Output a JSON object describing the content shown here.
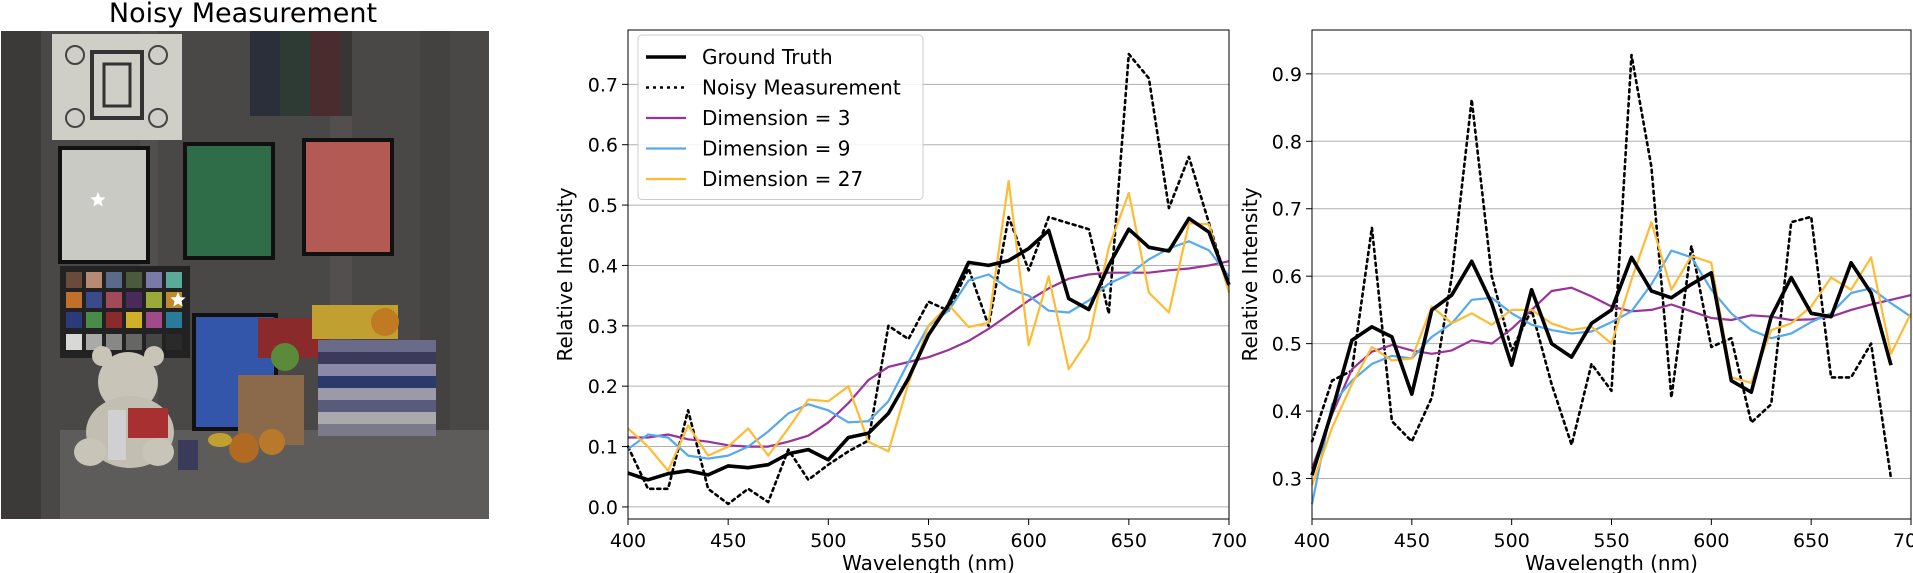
{
  "image_panel": {
    "title": "Noisy Measurement",
    "scene": "hyperspectral scene with color chart, test target, teddy bear and books",
    "markers": [
      "star-marker",
      "star-marker"
    ]
  },
  "colors": {
    "ground_truth": "#000000",
    "noisy": "#000000",
    "dim3": "#993399",
    "dim9": "#55aaee",
    "dim27": "#ffbb33",
    "grid": "#b0b0b0"
  },
  "chart_data": [
    {
      "type": "line",
      "title": "",
      "xlabel": "Wavelength (nm)",
      "ylabel": "Relative Intensity",
      "xlim": [
        400,
        700
      ],
      "ylim": [
        -0.02,
        0.79
      ],
      "xticks": [
        400,
        450,
        500,
        550,
        600,
        650,
        700
      ],
      "xtick_labels": [
        "400",
        "450",
        "500",
        "550",
        "600",
        "650",
        "700"
      ],
      "yticks": [
        0.0,
        0.1,
        0.2,
        0.3,
        0.4,
        0.5,
        0.6,
        0.7
      ],
      "ytick_labels": [
        "0.0",
        "0.1",
        "0.2",
        "0.3",
        "0.4",
        "0.5",
        "0.6",
        "0.7"
      ],
      "grid": "horizontal",
      "legend": "upper-left",
      "x": [
        400,
        410,
        420,
        430,
        440,
        450,
        460,
        470,
        480,
        490,
        500,
        510,
        520,
        530,
        540,
        550,
        560,
        570,
        580,
        590,
        600,
        610,
        620,
        630,
        640,
        650,
        660,
        670,
        680,
        690,
        700
      ],
      "series": [
        {
          "name": "Ground Truth",
          "style": "solid-thick",
          "color_key": "ground_truth",
          "values": [
            0.056,
            0.045,
            0.055,
            0.06,
            0.053,
            0.068,
            0.065,
            0.07,
            0.088,
            0.095,
            0.078,
            0.115,
            0.122,
            0.155,
            0.213,
            0.285,
            0.335,
            0.405,
            0.4,
            0.408,
            0.428,
            0.458,
            0.345,
            0.327,
            0.4,
            0.46,
            0.43,
            0.424,
            0.478,
            0.455,
            0.368
          ]
        },
        {
          "name": "Noisy Measurement",
          "style": "dotted",
          "color_key": "noisy",
          "values": [
            0.1,
            0.03,
            0.03,
            0.16,
            0.03,
            0.005,
            0.03,
            0.008,
            0.095,
            0.045,
            0.07,
            0.092,
            0.11,
            0.3,
            0.278,
            0.34,
            0.325,
            0.395,
            0.3,
            0.48,
            0.392,
            0.48,
            0.47,
            0.46,
            0.32,
            0.75,
            0.71,
            0.495,
            0.58,
            0.47,
            0.36
          ]
        },
        {
          "name": "Dimension = 3",
          "style": "solid",
          "color_key": "dim3",
          "values": [
            0.115,
            0.115,
            0.12,
            0.112,
            0.108,
            0.102,
            0.1,
            0.1,
            0.108,
            0.118,
            0.14,
            0.172,
            0.21,
            0.232,
            0.24,
            0.248,
            0.26,
            0.275,
            0.295,
            0.318,
            0.342,
            0.362,
            0.378,
            0.385,
            0.388,
            0.388,
            0.388,
            0.392,
            0.395,
            0.4,
            0.407
          ]
        },
        {
          "name": "Dimension = 9",
          "style": "solid",
          "color_key": "dim9",
          "values": [
            0.096,
            0.12,
            0.115,
            0.085,
            0.08,
            0.085,
            0.1,
            0.125,
            0.155,
            0.17,
            0.16,
            0.14,
            0.142,
            0.175,
            0.24,
            0.3,
            0.325,
            0.375,
            0.385,
            0.362,
            0.35,
            0.325,
            0.322,
            0.342,
            0.37,
            0.385,
            0.41,
            0.428,
            0.44,
            0.425,
            0.382
          ]
        },
        {
          "name": "Dimension = 27",
          "style": "solid",
          "color_key": "dim27",
          "values": [
            0.13,
            0.1,
            0.06,
            0.135,
            0.085,
            0.1,
            0.13,
            0.085,
            0.13,
            0.178,
            0.175,
            0.2,
            0.108,
            0.092,
            0.205,
            0.3,
            0.335,
            0.298,
            0.305,
            0.54,
            0.268,
            0.382,
            0.228,
            0.278,
            0.43,
            0.52,
            0.355,
            0.322,
            0.47,
            0.468,
            0.355
          ]
        }
      ]
    },
    {
      "type": "line",
      "title": "",
      "xlabel": "Wavelength (nm)",
      "ylabel": "Relative Intensity",
      "xlim": [
        400,
        700
      ],
      "ylim": [
        0.24,
        0.965
      ],
      "xticks": [
        400,
        450,
        500,
        550,
        600,
        650,
        700
      ],
      "xtick_labels": [
        "400",
        "450",
        "500",
        "550",
        "600",
        "650",
        "700"
      ],
      "yticks": [
        0.3,
        0.4,
        0.5,
        0.6,
        0.7,
        0.8,
        0.9
      ],
      "ytick_labels": [
        "0.3",
        "0.4",
        "0.5",
        "0.6",
        "0.7",
        "0.8",
        "0.9"
      ],
      "grid": "horizontal",
      "legend": "none",
      "x": [
        400,
        410,
        420,
        430,
        440,
        450,
        460,
        470,
        480,
        490,
        500,
        510,
        520,
        530,
        540,
        550,
        560,
        570,
        580,
        590,
        600,
        610,
        620,
        630,
        640,
        650,
        660,
        670,
        680,
        690,
        700
      ],
      "series": [
        {
          "name": "Ground Truth",
          "style": "solid-thick",
          "color_key": "ground_truth",
          "values": [
            0.305,
            0.4,
            0.505,
            0.525,
            0.51,
            0.425,
            0.55,
            0.572,
            0.622,
            0.56,
            0.468,
            0.58,
            0.5,
            0.48,
            0.53,
            0.55,
            0.628,
            0.578,
            0.568,
            0.588,
            0.605,
            0.445,
            0.428,
            0.54,
            0.598,
            0.545,
            0.54,
            0.62,
            0.575,
            0.468,
            null
          ]
        },
        {
          "name": "Noisy Measurement",
          "style": "dotted",
          "color_key": "noisy",
          "values": [
            0.355,
            0.445,
            0.46,
            0.672,
            0.385,
            0.355,
            0.42,
            0.6,
            0.862,
            0.6,
            0.49,
            0.55,
            0.44,
            0.35,
            0.47,
            0.43,
            0.928,
            0.762,
            0.42,
            0.645,
            0.495,
            0.508,
            0.383,
            0.41,
            0.68,
            0.688,
            0.45,
            0.45,
            0.5,
            0.3,
            null
          ]
        },
        {
          "name": "Dimension = 3",
          "style": "solid",
          "color_key": "dim3",
          "values": [
            0.315,
            0.395,
            0.462,
            0.488,
            0.498,
            0.49,
            0.485,
            0.49,
            0.505,
            0.5,
            0.522,
            0.55,
            0.578,
            0.583,
            0.57,
            0.555,
            0.548,
            0.55,
            0.558,
            0.548,
            0.538,
            0.535,
            0.542,
            0.54,
            0.535,
            0.536,
            0.54,
            0.55,
            0.558,
            0.565,
            0.572
          ]
        },
        {
          "name": "Dimension = 9",
          "style": "solid",
          "color_key": "dim9",
          "values": [
            0.262,
            0.41,
            0.445,
            0.47,
            0.482,
            0.478,
            0.51,
            0.53,
            0.565,
            0.568,
            0.545,
            0.528,
            0.52,
            0.515,
            0.518,
            0.532,
            0.548,
            0.588,
            0.638,
            0.628,
            0.58,
            0.545,
            0.52,
            0.508,
            0.515,
            0.532,
            0.545,
            0.575,
            0.582,
            0.56,
            0.54
          ]
        },
        {
          "name": "Dimension = 27",
          "style": "solid",
          "color_key": "dim27",
          "values": [
            0.29,
            0.375,
            0.44,
            0.495,
            0.475,
            0.478,
            0.555,
            0.53,
            0.545,
            0.528,
            0.55,
            0.55,
            0.53,
            0.52,
            0.525,
            0.5,
            0.595,
            0.68,
            0.58,
            0.63,
            0.62,
            0.45,
            0.442,
            0.52,
            0.53,
            0.555,
            0.598,
            0.58,
            0.628,
            0.485,
            0.545
          ]
        }
      ]
    }
  ]
}
